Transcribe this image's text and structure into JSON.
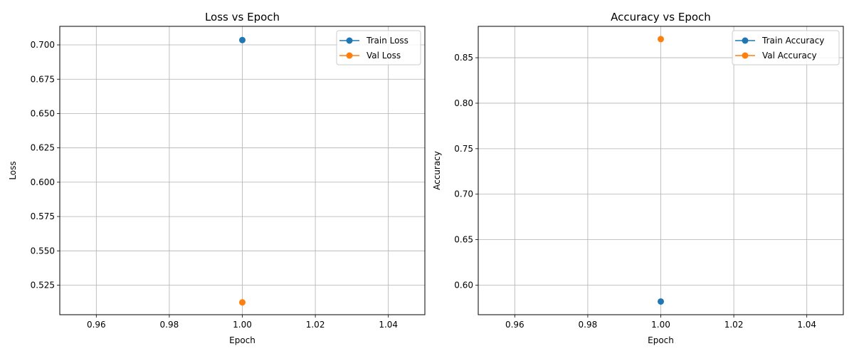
{
  "chart_data": [
    {
      "type": "line",
      "title": "Loss vs Epoch",
      "xlabel": "Epoch",
      "ylabel": "Loss",
      "xlim": [
        0.95,
        1.05
      ],
      "ylim": [
        0.5035,
        0.7135
      ],
      "xticks": [
        0.96,
        0.98,
        1.0,
        1.02,
        1.04
      ],
      "xtick_labels": [
        "0.96",
        "0.98",
        "1.00",
        "1.02",
        "1.04"
      ],
      "yticks": [
        0.525,
        0.55,
        0.575,
        0.6,
        0.625,
        0.65,
        0.675,
        0.7
      ],
      "ytick_labels": [
        "0.525",
        "0.550",
        "0.575",
        "0.600",
        "0.625",
        "0.650",
        "0.675",
        "0.700"
      ],
      "grid": true,
      "legend": "top-right",
      "series": [
        {
          "name": "Train Loss",
          "color": "#1f77b4",
          "x": [
            1.0
          ],
          "y": [
            0.7035
          ]
        },
        {
          "name": "Val Loss",
          "color": "#ff7f0e",
          "x": [
            1.0
          ],
          "y": [
            0.5125
          ]
        }
      ]
    },
    {
      "type": "line",
      "title": "Accuracy vs Epoch",
      "xlabel": "Epoch",
      "ylabel": "Accuracy",
      "xlim": [
        0.95,
        1.05
      ],
      "ylim": [
        0.5675,
        0.8845
      ],
      "xticks": [
        0.96,
        0.98,
        1.0,
        1.02,
        1.04
      ],
      "xtick_labels": [
        "0.96",
        "0.98",
        "1.00",
        "1.02",
        "1.04"
      ],
      "yticks": [
        0.6,
        0.65,
        0.7,
        0.75,
        0.8,
        0.85
      ],
      "ytick_labels": [
        "0.60",
        "0.65",
        "0.70",
        "0.75",
        "0.80",
        "0.85"
      ],
      "grid": true,
      "legend": "top-right",
      "series": [
        {
          "name": "Train Accuracy",
          "color": "#1f77b4",
          "x": [
            1.0
          ],
          "y": [
            0.582
          ]
        },
        {
          "name": "Val Accuracy",
          "color": "#ff7f0e",
          "x": [
            1.0
          ],
          "y": [
            0.8705
          ]
        }
      ]
    }
  ]
}
